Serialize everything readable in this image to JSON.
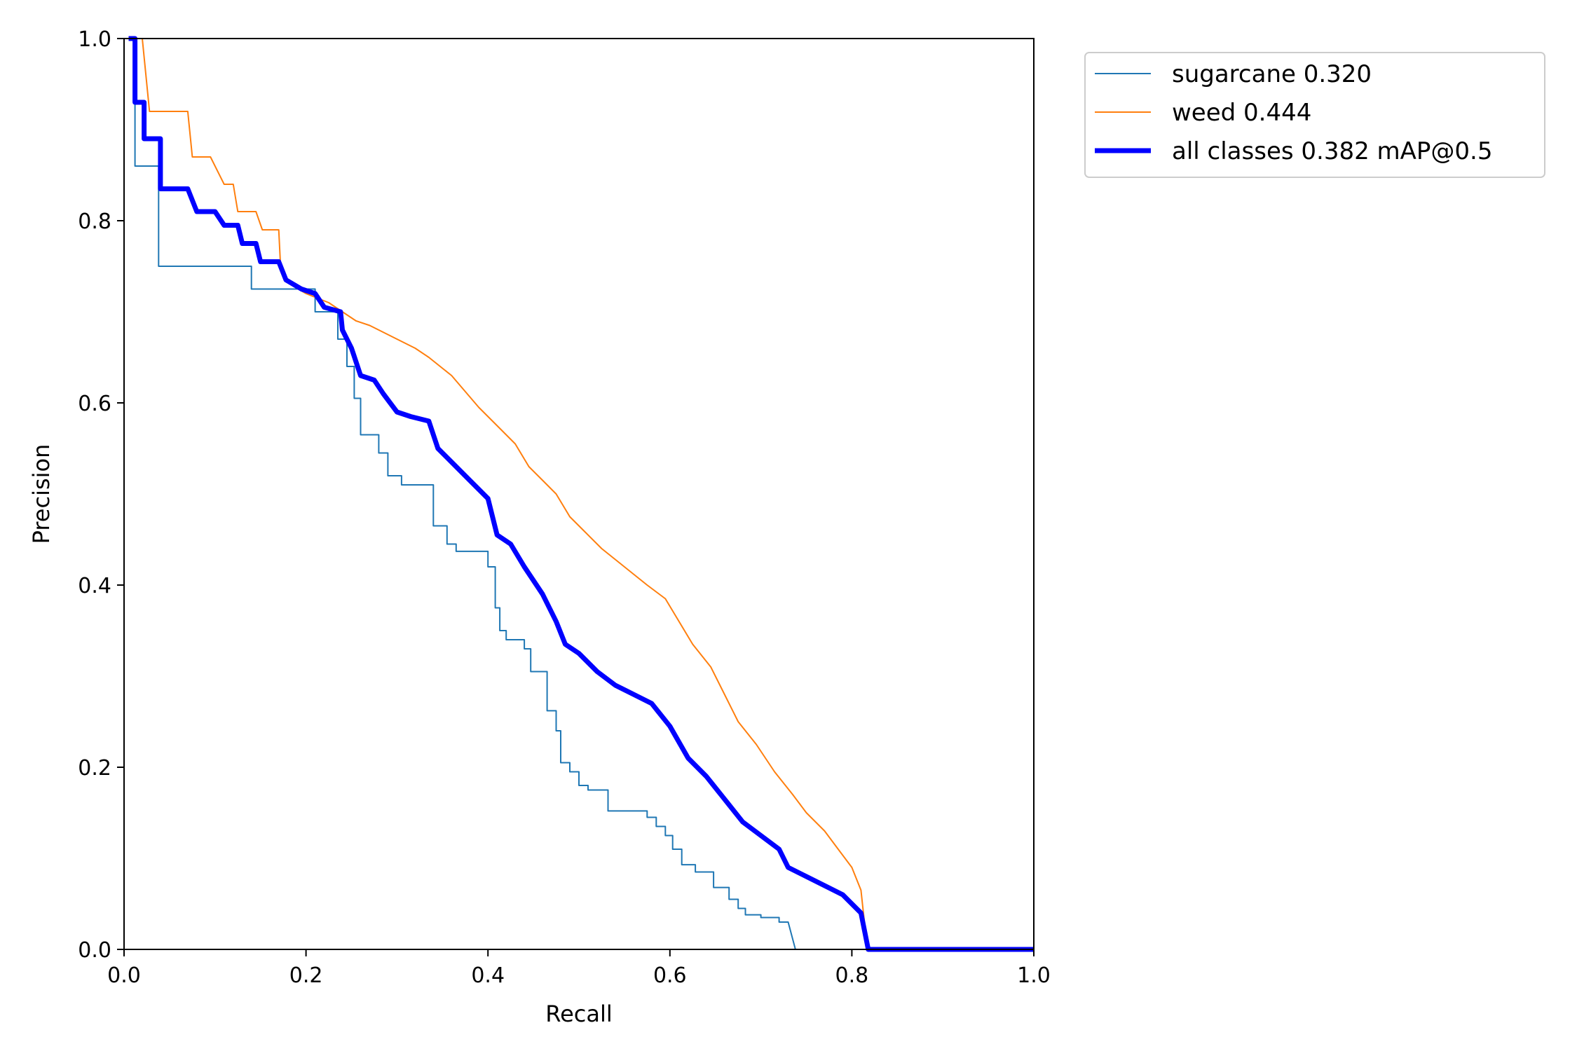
{
  "chart_data": {
    "type": "line",
    "title": "",
    "xlabel": "Recall",
    "ylabel": "Precision",
    "xlim": [
      0,
      1
    ],
    "ylim": [
      0,
      1
    ],
    "grid": false,
    "legend_position": "outside-top-right",
    "x_ticks": [
      "0.0",
      "0.2",
      "0.4",
      "0.6",
      "0.8",
      "1.0"
    ],
    "y_ticks": [
      "0.0",
      "0.2",
      "0.4",
      "0.6",
      "0.8",
      "1.0"
    ],
    "series": [
      {
        "name": "sugarcane 0.320",
        "color": "#1f77b4",
        "style": "thin",
        "points": [
          [
            0,
            1
          ],
          [
            0.012,
            1
          ],
          [
            0.012,
            0.86
          ],
          [
            0.038,
            0.86
          ],
          [
            0.038,
            0.75
          ],
          [
            0.14,
            0.75
          ],
          [
            0.14,
            0.725
          ],
          [
            0.21,
            0.725
          ],
          [
            0.21,
            0.7
          ],
          [
            0.235,
            0.7
          ],
          [
            0.235,
            0.67
          ],
          [
            0.245,
            0.67
          ],
          [
            0.245,
            0.64
          ],
          [
            0.253,
            0.64
          ],
          [
            0.253,
            0.605
          ],
          [
            0.26,
            0.605
          ],
          [
            0.26,
            0.565
          ],
          [
            0.28,
            0.565
          ],
          [
            0.28,
            0.545
          ],
          [
            0.29,
            0.545
          ],
          [
            0.29,
            0.52
          ],
          [
            0.305,
            0.52
          ],
          [
            0.305,
            0.51
          ],
          [
            0.34,
            0.51
          ],
          [
            0.34,
            0.465
          ],
          [
            0.355,
            0.465
          ],
          [
            0.355,
            0.445
          ],
          [
            0.365,
            0.445
          ],
          [
            0.365,
            0.437
          ],
          [
            0.4,
            0.437
          ],
          [
            0.4,
            0.42
          ],
          [
            0.408,
            0.42
          ],
          [
            0.408,
            0.375
          ],
          [
            0.413,
            0.375
          ],
          [
            0.413,
            0.35
          ],
          [
            0.42,
            0.35
          ],
          [
            0.42,
            0.34
          ],
          [
            0.44,
            0.34
          ],
          [
            0.44,
            0.33
          ],
          [
            0.447,
            0.33
          ],
          [
            0.447,
            0.305
          ],
          [
            0.465,
            0.305
          ],
          [
            0.465,
            0.262
          ],
          [
            0.475,
            0.262
          ],
          [
            0.475,
            0.24
          ],
          [
            0.48,
            0.24
          ],
          [
            0.48,
            0.205
          ],
          [
            0.49,
            0.205
          ],
          [
            0.49,
            0.195
          ],
          [
            0.5,
            0.195
          ],
          [
            0.5,
            0.18
          ],
          [
            0.51,
            0.18
          ],
          [
            0.51,
            0.175
          ],
          [
            0.532,
            0.175
          ],
          [
            0.532,
            0.152
          ],
          [
            0.575,
            0.152
          ],
          [
            0.575,
            0.145
          ],
          [
            0.585,
            0.145
          ],
          [
            0.585,
            0.135
          ],
          [
            0.595,
            0.135
          ],
          [
            0.595,
            0.125
          ],
          [
            0.603,
            0.125
          ],
          [
            0.603,
            0.11
          ],
          [
            0.613,
            0.11
          ],
          [
            0.613,
            0.093
          ],
          [
            0.628,
            0.093
          ],
          [
            0.628,
            0.085
          ],
          [
            0.648,
            0.085
          ],
          [
            0.648,
            0.068
          ],
          [
            0.665,
            0.068
          ],
          [
            0.665,
            0.055
          ],
          [
            0.675,
            0.055
          ],
          [
            0.675,
            0.045
          ],
          [
            0.683,
            0.045
          ],
          [
            0.683,
            0.038
          ],
          [
            0.7,
            0.038
          ],
          [
            0.7,
            0.035
          ],
          [
            0.72,
            0.035
          ],
          [
            0.72,
            0.03
          ],
          [
            0.73,
            0.03
          ],
          [
            0.738,
            0.0
          ],
          [
            0.82,
            0.0
          ],
          [
            1.0,
            0.0
          ]
        ]
      },
      {
        "name": "weed 0.444",
        "color": "#ff7f0e",
        "style": "thin",
        "points": [
          [
            0.02,
            1
          ],
          [
            0.028,
            0.92
          ],
          [
            0.07,
            0.92
          ],
          [
            0.075,
            0.87
          ],
          [
            0.095,
            0.87
          ],
          [
            0.11,
            0.84
          ],
          [
            0.12,
            0.84
          ],
          [
            0.125,
            0.81
          ],
          [
            0.145,
            0.81
          ],
          [
            0.152,
            0.79
          ],
          [
            0.17,
            0.79
          ],
          [
            0.172,
            0.75
          ],
          [
            0.183,
            0.73
          ],
          [
            0.2,
            0.72
          ],
          [
            0.225,
            0.71
          ],
          [
            0.24,
            0.7
          ],
          [
            0.255,
            0.69
          ],
          [
            0.27,
            0.685
          ],
          [
            0.3,
            0.67
          ],
          [
            0.32,
            0.66
          ],
          [
            0.335,
            0.65
          ],
          [
            0.36,
            0.63
          ],
          [
            0.39,
            0.595
          ],
          [
            0.41,
            0.575
          ],
          [
            0.43,
            0.555
          ],
          [
            0.445,
            0.53
          ],
          [
            0.46,
            0.515
          ],
          [
            0.475,
            0.5
          ],
          [
            0.49,
            0.475
          ],
          [
            0.505,
            0.46
          ],
          [
            0.525,
            0.44
          ],
          [
            0.55,
            0.42
          ],
          [
            0.575,
            0.4
          ],
          [
            0.595,
            0.385
          ],
          [
            0.61,
            0.36
          ],
          [
            0.625,
            0.335
          ],
          [
            0.645,
            0.31
          ],
          [
            0.66,
            0.28
          ],
          [
            0.675,
            0.25
          ],
          [
            0.695,
            0.225
          ],
          [
            0.715,
            0.195
          ],
          [
            0.735,
            0.17
          ],
          [
            0.75,
            0.15
          ],
          [
            0.77,
            0.13
          ],
          [
            0.785,
            0.11
          ],
          [
            0.8,
            0.09
          ],
          [
            0.81,
            0.065
          ],
          [
            0.817,
            0.0
          ],
          [
            1.0,
            0.0
          ]
        ]
      },
      {
        "name": "all classes 0.382 mAP@0.5",
        "color": "#0000ff",
        "style": "thick",
        "points": [
          [
            0.005,
            1
          ],
          [
            0.012,
            1
          ],
          [
            0.012,
            0.93
          ],
          [
            0.022,
            0.93
          ],
          [
            0.022,
            0.89
          ],
          [
            0.04,
            0.89
          ],
          [
            0.04,
            0.835
          ],
          [
            0.07,
            0.835
          ],
          [
            0.08,
            0.81
          ],
          [
            0.1,
            0.81
          ],
          [
            0.11,
            0.795
          ],
          [
            0.125,
            0.795
          ],
          [
            0.13,
            0.775
          ],
          [
            0.145,
            0.775
          ],
          [
            0.15,
            0.755
          ],
          [
            0.17,
            0.755
          ],
          [
            0.178,
            0.735
          ],
          [
            0.195,
            0.725
          ],
          [
            0.21,
            0.72
          ],
          [
            0.22,
            0.705
          ],
          [
            0.238,
            0.7
          ],
          [
            0.24,
            0.68
          ],
          [
            0.25,
            0.66
          ],
          [
            0.26,
            0.63
          ],
          [
            0.275,
            0.625
          ],
          [
            0.285,
            0.61
          ],
          [
            0.3,
            0.59
          ],
          [
            0.315,
            0.585
          ],
          [
            0.335,
            0.58
          ],
          [
            0.345,
            0.55
          ],
          [
            0.36,
            0.535
          ],
          [
            0.38,
            0.515
          ],
          [
            0.4,
            0.495
          ],
          [
            0.41,
            0.455
          ],
          [
            0.425,
            0.445
          ],
          [
            0.44,
            0.42
          ],
          [
            0.46,
            0.39
          ],
          [
            0.475,
            0.36
          ],
          [
            0.485,
            0.335
          ],
          [
            0.5,
            0.325
          ],
          [
            0.52,
            0.305
          ],
          [
            0.54,
            0.29
          ],
          [
            0.56,
            0.28
          ],
          [
            0.58,
            0.27
          ],
          [
            0.6,
            0.245
          ],
          [
            0.62,
            0.21
          ],
          [
            0.64,
            0.19
          ],
          [
            0.66,
            0.165
          ],
          [
            0.68,
            0.14
          ],
          [
            0.7,
            0.125
          ],
          [
            0.72,
            0.11
          ],
          [
            0.73,
            0.09
          ],
          [
            0.75,
            0.08
          ],
          [
            0.77,
            0.07
          ],
          [
            0.79,
            0.06
          ],
          [
            0.81,
            0.04
          ],
          [
            0.818,
            0.0
          ],
          [
            1.0,
            0.0
          ]
        ]
      }
    ]
  }
}
